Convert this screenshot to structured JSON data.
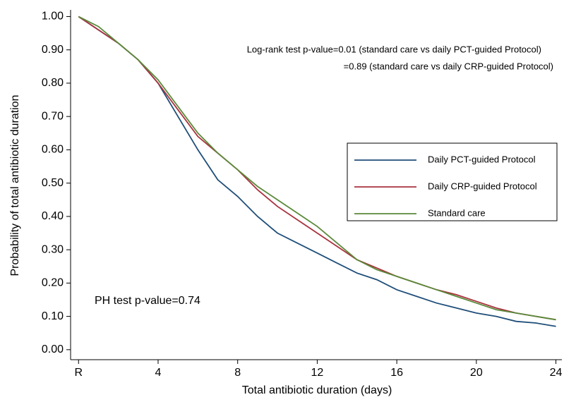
{
  "chart_data": {
    "type": "line",
    "x_label": "Total antibiotic duration (days)",
    "y_label": "Probability of total antibiotic duration",
    "annotations": [
      "Log-rank test p-value=0.01 (standard care vs daily PCT-guided Protocol)",
      "=0.89 (standard care vs daily CRP-guided Protocol)",
      "PH test p-value=0.74"
    ],
    "x": [
      0,
      1,
      2,
      3,
      4,
      5,
      6,
      7,
      8,
      9,
      10,
      11,
      12,
      13,
      14,
      15,
      16,
      17,
      18,
      19,
      20,
      21,
      22,
      23,
      24
    ],
    "series": [
      {
        "name": "Daily PCT-guided Protocol",
        "color": "#1f4e79",
        "values": [
          1,
          0.96,
          0.92,
          0.87,
          0.8,
          0.7,
          0.6,
          0.51,
          0.46,
          0.4,
          0.35,
          0.32,
          0.29,
          0.26,
          0.23,
          0.21,
          0.18,
          0.16,
          0.14,
          0.125,
          0.11,
          0.1,
          0.085,
          0.08,
          0.07
        ]
      },
      {
        "name": "Daily CRP-guided Protocol",
        "color": "#a8323e",
        "values": [
          1,
          0.96,
          0.92,
          0.87,
          0.8,
          0.72,
          0.64,
          0.59,
          0.54,
          0.48,
          0.43,
          0.39,
          0.35,
          0.31,
          0.27,
          0.245,
          0.22,
          0.2,
          0.18,
          0.165,
          0.145,
          0.125,
          0.11,
          0.1,
          0.09
        ]
      },
      {
        "name": "Standard care",
        "color": "#5a8a3a",
        "values": [
          1,
          0.97,
          0.92,
          0.87,
          0.81,
          0.73,
          0.65,
          0.59,
          0.54,
          0.49,
          0.45,
          0.41,
          0.37,
          0.32,
          0.27,
          0.24,
          0.22,
          0.2,
          0.18,
          0.16,
          0.14,
          0.12,
          0.11,
          0.1,
          0.09
        ]
      }
    ],
    "xlim": [
      -0.4,
      24.3
    ],
    "ylim": [
      -0.03,
      1.02
    ],
    "xticks": [
      {
        "value": 0,
        "label": "R"
      },
      4,
      8,
      12,
      16,
      20,
      24
    ],
    "yticks": [
      {
        "value": 0,
        "label": "0.00"
      },
      {
        "value": 0.1,
        "label": "0.10"
      },
      {
        "value": 0.2,
        "label": "0.20"
      },
      {
        "value": 0.3,
        "label": "0.30"
      },
      {
        "value": 0.4,
        "label": "0.40"
      },
      {
        "value": 0.5,
        "label": "0.50"
      },
      {
        "value": 0.6,
        "label": "0.60"
      },
      {
        "value": 0.7,
        "label": "0.70"
      },
      {
        "value": 0.8,
        "label": "0.80"
      },
      {
        "value": 0.9,
        "label": "0.90"
      },
      {
        "value": 1,
        "label": "1.00"
      }
    ],
    "legend_position": "right"
  }
}
